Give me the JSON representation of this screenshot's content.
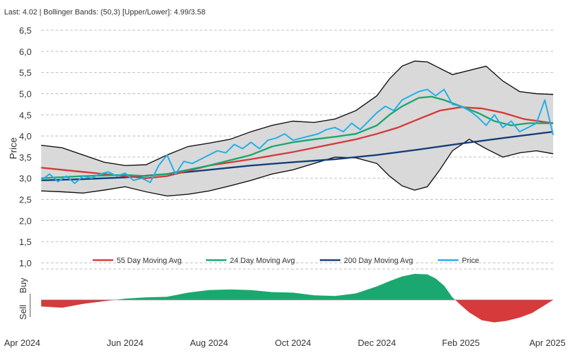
{
  "header": "Last: 4.02 | Bollinger Bands: (50,3) [Upper/Lower]: 4.99/3.58",
  "colors": {
    "band_fill": "#d9d9d9",
    "band_line": "#111111",
    "ma55": "#d63a3a",
    "ma24": "#1aa870",
    "ma200": "#123f7a",
    "price": "#21aeea",
    "buy": "#1aa870",
    "sell": "#d63a3a",
    "grid": "#bfbfbf"
  },
  "chart_data": [
    {
      "type": "line",
      "title": "Last: 4.02 | Bollinger Bands: (50,3) [Upper/Lower]: 4.99/3.58",
      "ylabel": "Price",
      "ylim": [
        1.0,
        6.5
      ],
      "yticks": [
        "6,5",
        "6,0",
        "5,5",
        "5,0",
        "4,5",
        "4,0",
        "3,5",
        "3,0",
        "2,5",
        "2,0",
        "1,5",
        "1,0"
      ],
      "ytick_values": [
        6.5,
        6.0,
        5.5,
        5.0,
        4.5,
        4.0,
        3.5,
        3.0,
        2.5,
        2.0,
        1.5,
        1.0
      ],
      "xlim": [
        0,
        12
      ],
      "xtick_labels": [
        "Apr 2024",
        "Jun 2024",
        "Aug 2024",
        "Oct 2024",
        "Dec 2024",
        "Feb 2025",
        "Apr 2025"
      ],
      "xtick_values": [
        0,
        2,
        4,
        6,
        8,
        10,
        12
      ],
      "legend": [
        "55 Day Moving Avg",
        "24 Day Moving Avg",
        "200 Day Moving Avg",
        "Price"
      ],
      "legend_position": "bottom",
      "grid": true,
      "series": [
        {
          "name": "Upper Band",
          "x": [
            0,
            0.5,
            1,
            1.5,
            2,
            2.5,
            3,
            3.5,
            4,
            4.5,
            5,
            5.5,
            6,
            6.5,
            7,
            7.5,
            8,
            8.3,
            8.6,
            8.9,
            9.2,
            9.5,
            9.8,
            10.2,
            10.6,
            11,
            11.4,
            11.8,
            12.2
          ],
          "y": [
            3.78,
            3.72,
            3.55,
            3.38,
            3.3,
            3.32,
            3.55,
            3.75,
            3.83,
            3.92,
            4.1,
            4.25,
            4.35,
            4.32,
            4.4,
            4.6,
            4.95,
            5.35,
            5.65,
            5.77,
            5.75,
            5.6,
            5.45,
            5.55,
            5.65,
            5.3,
            5.05,
            5.0,
            4.98
          ]
        },
        {
          "name": "Lower Band",
          "x": [
            0,
            0.5,
            1,
            1.5,
            2,
            2.5,
            3,
            3.5,
            4,
            4.5,
            5,
            5.5,
            6,
            6.5,
            7,
            7.5,
            8,
            8.3,
            8.6,
            8.9,
            9.2,
            9.5,
            9.8,
            10.2,
            10.6,
            11,
            11.4,
            11.8,
            12.2
          ],
          "y": [
            2.7,
            2.68,
            2.65,
            2.72,
            2.8,
            2.68,
            2.58,
            2.62,
            2.7,
            2.82,
            2.95,
            3.1,
            3.2,
            3.35,
            3.5,
            3.48,
            3.35,
            3.05,
            2.82,
            2.72,
            2.8,
            3.2,
            3.65,
            3.92,
            3.7,
            3.5,
            3.6,
            3.65,
            3.58
          ]
        },
        {
          "name": "55 Day Moving Avg",
          "x": [
            0,
            1,
            2,
            2.5,
            3,
            4,
            5,
            6,
            7,
            7.5,
            8,
            8.5,
            9,
            9.5,
            10,
            10.5,
            11,
            11.5,
            12.2
          ],
          "y": [
            3.25,
            3.15,
            3.05,
            3.0,
            3.05,
            3.3,
            3.45,
            3.62,
            3.82,
            3.92,
            4.05,
            4.2,
            4.4,
            4.6,
            4.68,
            4.65,
            4.55,
            4.4,
            4.3
          ]
        },
        {
          "name": "24 Day Moving Avg",
          "x": [
            0,
            1,
            2,
            2.5,
            3,
            4,
            5,
            5.5,
            6,
            6.5,
            7,
            7.5,
            8,
            8.3,
            8.6,
            9,
            9.3,
            9.6,
            10,
            10.4,
            10.8,
            11.2,
            11.6,
            12.2
          ],
          "y": [
            3.0,
            3.05,
            3.08,
            3.05,
            3.1,
            3.3,
            3.55,
            3.75,
            3.85,
            3.92,
            3.98,
            4.05,
            4.25,
            4.5,
            4.7,
            4.9,
            4.93,
            4.85,
            4.7,
            4.55,
            4.35,
            4.25,
            4.3,
            4.3
          ]
        },
        {
          "name": "200 Day Moving Avg",
          "x": [
            0,
            1,
            2,
            3,
            4,
            5,
            6,
            7,
            8,
            9,
            10,
            11,
            12.2
          ],
          "y": [
            2.95,
            2.98,
            3.02,
            3.1,
            3.2,
            3.3,
            3.38,
            3.45,
            3.55,
            3.68,
            3.82,
            3.95,
            4.1
          ]
        },
        {
          "name": "Price",
          "x": [
            0,
            0.2,
            0.4,
            0.6,
            0.8,
            1.0,
            1.2,
            1.4,
            1.6,
            1.8,
            2.0,
            2.2,
            2.4,
            2.6,
            2.8,
            3.0,
            3.2,
            3.4,
            3.6,
            3.8,
            4.0,
            4.2,
            4.4,
            4.6,
            4.8,
            5.0,
            5.2,
            5.4,
            5.6,
            5.8,
            6.0,
            6.2,
            6.4,
            6.6,
            6.8,
            7.0,
            7.2,
            7.4,
            7.6,
            7.8,
            8.0,
            8.2,
            8.4,
            8.6,
            8.8,
            9.0,
            9.2,
            9.4,
            9.6,
            9.8,
            10.0,
            10.2,
            10.4,
            10.6,
            10.8,
            11.0,
            11.2,
            11.4,
            11.6,
            11.8,
            12.0,
            12.2
          ],
          "y": [
            2.95,
            3.1,
            2.92,
            3.05,
            2.88,
            3.05,
            3.0,
            3.1,
            3.15,
            3.05,
            3.12,
            2.95,
            3.0,
            2.9,
            3.3,
            3.55,
            3.1,
            3.4,
            3.35,
            3.45,
            3.55,
            3.65,
            3.6,
            3.8,
            3.7,
            3.85,
            3.7,
            3.9,
            3.95,
            4.05,
            3.9,
            3.95,
            4.0,
            4.05,
            4.15,
            4.2,
            4.1,
            4.3,
            4.15,
            4.35,
            4.55,
            4.7,
            4.6,
            4.85,
            4.95,
            5.05,
            5.1,
            4.95,
            5.1,
            4.75,
            4.7,
            4.6,
            4.45,
            4.25,
            4.5,
            4.2,
            4.35,
            4.1,
            4.2,
            4.3,
            4.85,
            4.02
          ]
        }
      ]
    },
    {
      "type": "area",
      "title": "",
      "ylabel_top": "Buy",
      "ylabel_bottom": "Sell",
      "xlim": [
        0,
        12
      ],
      "ylim": [
        -1,
        1
      ],
      "series": [
        {
          "name": "Signal",
          "x": [
            0,
            0.5,
            1,
            1.5,
            2,
            2.5,
            3,
            3.5,
            4,
            4.5,
            5,
            5.5,
            6,
            6.5,
            7,
            7.5,
            8,
            8.3,
            8.6,
            8.9,
            9.2,
            9.4,
            9.6,
            9.8,
            10.0,
            10.2,
            10.5,
            10.8,
            11.1,
            11.4,
            11.7,
            12.0,
            12.2
          ],
          "y": [
            -0.25,
            -0.3,
            -0.15,
            -0.05,
            0.05,
            0.1,
            0.12,
            0.28,
            0.38,
            0.4,
            0.38,
            0.3,
            0.28,
            0.18,
            0.15,
            0.25,
            0.52,
            0.72,
            0.9,
            1.0,
            0.98,
            0.82,
            0.55,
            0.1,
            -0.2,
            -0.48,
            -0.78,
            -0.86,
            -0.8,
            -0.68,
            -0.5,
            -0.2,
            0.0
          ]
        }
      ]
    }
  ]
}
